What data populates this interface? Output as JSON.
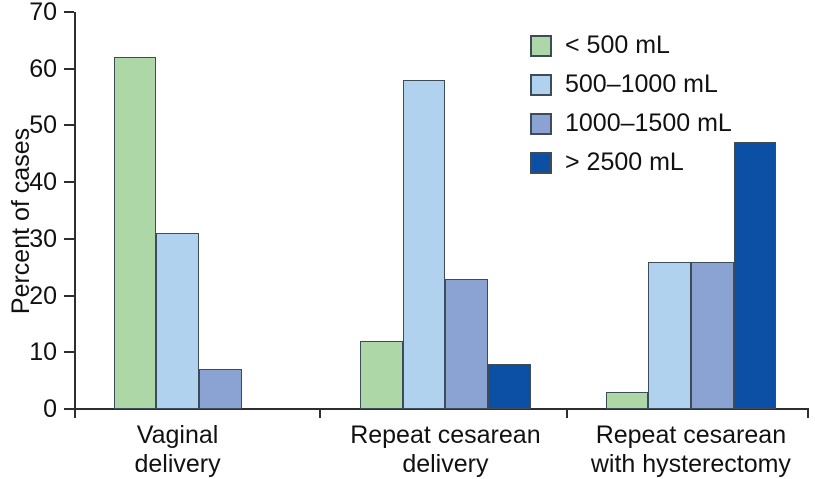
{
  "chart_data": {
    "type": "bar",
    "title": "",
    "ylabel": "Percent of cases",
    "xlabel": "",
    "ylim": [
      0,
      70
    ],
    "yticks": [
      0,
      10,
      20,
      30,
      40,
      50,
      60,
      70
    ],
    "grid": false,
    "legend_position": "top-right",
    "categories": [
      "Vaginal delivery",
      "Repeat cesarean delivery",
      "Repeat cesarean with hysterectomy"
    ],
    "category_label_lines": [
      [
        "Vaginal",
        "delivery"
      ],
      [
        "Repeat cesarean",
        "delivery"
      ],
      [
        "Repeat cesarean",
        "with hysterectomy"
      ]
    ],
    "series": [
      {
        "name": "< 500 mL",
        "color": "#aed7a8",
        "values": [
          62,
          12,
          3
        ]
      },
      {
        "name": "500–1000 mL",
        "color": "#b1d2ee",
        "values": [
          31,
          58,
          26
        ]
      },
      {
        "name": "1000–1500 mL",
        "color": "#8aa3d3",
        "values": [
          7,
          23,
          26
        ]
      },
      {
        "name": "> 2500 mL",
        "color": "#0b50a4",
        "values": [
          null,
          8,
          47
        ]
      }
    ]
  },
  "colors": {
    "axis": "#2e2e2e",
    "bar_border": "#3e4c5a",
    "text": "#111111",
    "background": "#ffffff"
  }
}
